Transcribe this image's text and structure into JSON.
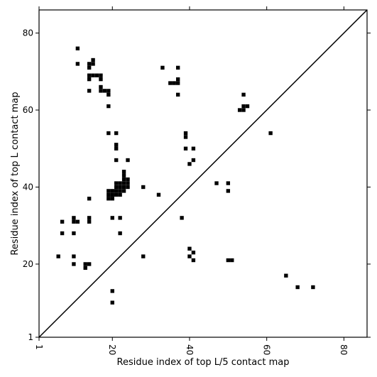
{
  "chart_data": {
    "type": "heatmap",
    "title": "",
    "xlabel": "Residue index of top L/5 contact map",
    "ylabel": "Residue index of top L contact map",
    "xlim": [
      1,
      86
    ],
    "ylim": [
      1,
      86
    ],
    "xticks": [
      1,
      20,
      40,
      60,
      80
    ],
    "yticks": [
      1,
      20,
      40,
      60,
      80
    ],
    "grid": false,
    "diagonal_line": true,
    "cell_color": "#000000",
    "cells": [
      [
        11,
        76
      ],
      [
        11,
        72
      ],
      [
        14,
        72
      ],
      [
        14,
        71
      ],
      [
        15,
        73
      ],
      [
        15,
        72
      ],
      [
        14,
        69
      ],
      [
        15,
        69
      ],
      [
        16,
        69
      ],
      [
        17,
        69
      ],
      [
        14,
        68
      ],
      [
        17,
        68
      ],
      [
        17,
        66
      ],
      [
        17,
        65
      ],
      [
        18,
        65
      ],
      [
        19,
        65
      ],
      [
        19,
        64
      ],
      [
        14,
        65
      ],
      [
        19,
        61
      ],
      [
        19,
        54
      ],
      [
        21,
        54
      ],
      [
        21,
        51
      ],
      [
        21,
        50
      ],
      [
        21,
        47
      ],
      [
        24,
        47
      ],
      [
        23,
        44
      ],
      [
        23,
        43
      ],
      [
        23,
        42
      ],
      [
        24,
        42
      ],
      [
        21,
        41
      ],
      [
        22,
        41
      ],
      [
        23,
        41
      ],
      [
        24,
        41
      ],
      [
        21,
        40
      ],
      [
        22,
        40
      ],
      [
        23,
        40
      ],
      [
        24,
        40
      ],
      [
        19,
        39
      ],
      [
        20,
        39
      ],
      [
        21,
        39
      ],
      [
        22,
        39
      ],
      [
        23,
        39
      ],
      [
        19,
        38
      ],
      [
        20,
        38
      ],
      [
        21,
        38
      ],
      [
        22,
        38
      ],
      [
        19,
        37
      ],
      [
        20,
        37
      ],
      [
        14,
        37
      ],
      [
        28,
        40
      ],
      [
        32,
        38
      ],
      [
        20,
        32
      ],
      [
        22,
        32
      ],
      [
        22,
        28
      ],
      [
        7,
        31
      ],
      [
        10,
        32
      ],
      [
        10,
        31
      ],
      [
        11,
        31
      ],
      [
        14,
        32
      ],
      [
        14,
        31
      ],
      [
        7,
        28
      ],
      [
        10,
        28
      ],
      [
        6,
        22
      ],
      [
        10,
        22
      ],
      [
        28,
        22
      ],
      [
        10,
        20
      ],
      [
        13,
        20
      ],
      [
        14,
        20
      ],
      [
        13,
        19
      ],
      [
        20,
        13
      ],
      [
        20,
        10
      ],
      [
        33,
        71
      ],
      [
        37,
        71
      ],
      [
        35,
        67
      ],
      [
        36,
        67
      ],
      [
        37,
        67
      ],
      [
        37,
        68
      ],
      [
        37,
        64
      ],
      [
        39,
        54
      ],
      [
        39,
        53
      ],
      [
        39,
        50
      ],
      [
        41,
        50
      ],
      [
        41,
        47
      ],
      [
        40,
        46
      ],
      [
        38,
        32
      ],
      [
        40,
        24
      ],
      [
        41,
        23
      ],
      [
        40,
        22
      ],
      [
        41,
        21
      ],
      [
        47,
        41
      ],
      [
        50,
        41
      ],
      [
        50,
        39
      ],
      [
        50,
        21
      ],
      [
        51,
        21
      ],
      [
        53,
        60
      ],
      [
        54,
        60
      ],
      [
        54,
        61
      ],
      [
        55,
        61
      ],
      [
        54,
        64
      ],
      [
        61,
        54
      ],
      [
        65,
        17
      ],
      [
        68,
        14
      ],
      [
        72,
        14
      ]
    ]
  }
}
